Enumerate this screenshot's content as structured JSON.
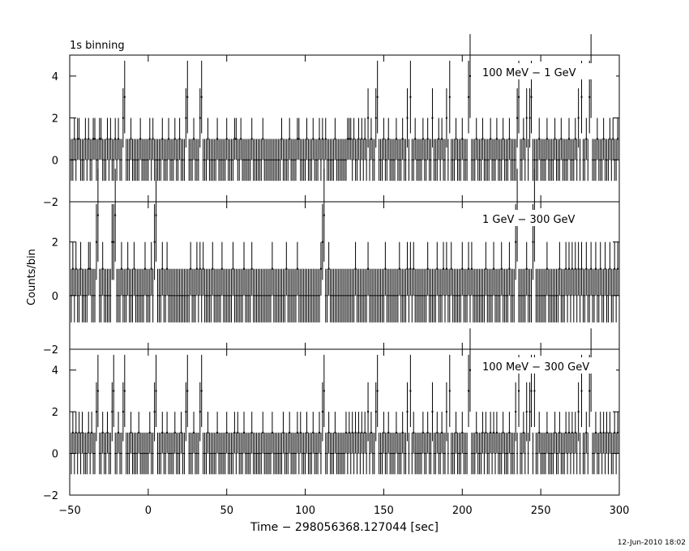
{
  "figure": {
    "title": "1s binning",
    "ylabel": "Counts/bin",
    "xlabel": "Time − 298056368.127044 [sec]",
    "timestamp": "12-Jun-2010 18:02"
  },
  "chart_data": [
    {
      "type": "bar",
      "panel": "top",
      "label": "100 MeV − 1 GeV",
      "xlim": [
        -50,
        300
      ],
      "ylim": [
        -2,
        5
      ],
      "yticks": [
        -2,
        0,
        2,
        4
      ],
      "ytick_labels": [
        "−2",
        "0",
        "2",
        "4"
      ],
      "bin_width_sec": 1,
      "points": [
        {
          "x": -47,
          "y": 1
        },
        {
          "x": -45,
          "y": 1
        },
        {
          "x": -44,
          "y": 1
        },
        {
          "x": -40,
          "y": 1
        },
        {
          "x": -38,
          "y": 1
        },
        {
          "x": -35,
          "y": 1
        },
        {
          "x": -34,
          "y": 1
        },
        {
          "x": -31,
          "y": 1
        },
        {
          "x": -30,
          "y": 1
        },
        {
          "x": -26,
          "y": 1
        },
        {
          "x": -24,
          "y": 1
        },
        {
          "x": -21,
          "y": 1
        },
        {
          "x": -19,
          "y": 1
        },
        {
          "x": -16,
          "y": 2
        },
        {
          "x": -15,
          "y": 3
        },
        {
          "x": -11,
          "y": 1
        },
        {
          "x": -5,
          "y": 1
        },
        {
          "x": 1,
          "y": 1
        },
        {
          "x": 3,
          "y": 1
        },
        {
          "x": 9,
          "y": 1
        },
        {
          "x": 13,
          "y": 1
        },
        {
          "x": 17,
          "y": 1
        },
        {
          "x": 20,
          "y": 1
        },
        {
          "x": 24,
          "y": 2
        },
        {
          "x": 25,
          "y": 3
        },
        {
          "x": 29,
          "y": 1
        },
        {
          "x": 33,
          "y": 2
        },
        {
          "x": 34,
          "y": 3
        },
        {
          "x": 38,
          "y": 1
        },
        {
          "x": 44,
          "y": 1
        },
        {
          "x": 50,
          "y": 1
        },
        {
          "x": 55,
          "y": 1
        },
        {
          "x": 56,
          "y": 1
        },
        {
          "x": 59,
          "y": 1
        },
        {
          "x": 66,
          "y": 1
        },
        {
          "x": 73,
          "y": 1
        },
        {
          "x": 85,
          "y": 1
        },
        {
          "x": 90,
          "y": 1
        },
        {
          "x": 95,
          "y": 1
        },
        {
          "x": 96,
          "y": 1
        },
        {
          "x": 101,
          "y": 1
        },
        {
          "x": 105,
          "y": 1
        },
        {
          "x": 109,
          "y": 1
        },
        {
          "x": 111,
          "y": 1
        },
        {
          "x": 113,
          "y": 1
        },
        {
          "x": 119,
          "y": 1
        },
        {
          "x": 127,
          "y": 1
        },
        {
          "x": 128,
          "y": 1
        },
        {
          "x": 129,
          "y": 1
        },
        {
          "x": 131,
          "y": 1
        },
        {
          "x": 134,
          "y": 1
        },
        {
          "x": 136,
          "y": 1
        },
        {
          "x": 138,
          "y": 1
        },
        {
          "x": 140,
          "y": 2
        },
        {
          "x": 142,
          "y": 1
        },
        {
          "x": 145,
          "y": 2
        },
        {
          "x": 146,
          "y": 3
        },
        {
          "x": 150,
          "y": 1
        },
        {
          "x": 153,
          "y": 1
        },
        {
          "x": 158,
          "y": 1
        },
        {
          "x": 162,
          "y": 1
        },
        {
          "x": 165,
          "y": 2
        },
        {
          "x": 167,
          "y": 3
        },
        {
          "x": 170,
          "y": 1
        },
        {
          "x": 175,
          "y": 1
        },
        {
          "x": 178,
          "y": 1
        },
        {
          "x": 181,
          "y": 2
        },
        {
          "x": 185,
          "y": 1
        },
        {
          "x": 187,
          "y": 1
        },
        {
          "x": 190,
          "y": 2
        },
        {
          "x": 192,
          "y": 3
        },
        {
          "x": 196,
          "y": 1
        },
        {
          "x": 200,
          "y": 1
        },
        {
          "x": 204,
          "y": 3
        },
        {
          "x": 205,
          "y": 4
        },
        {
          "x": 209,
          "y": 1
        },
        {
          "x": 213,
          "y": 1
        },
        {
          "x": 218,
          "y": 1
        },
        {
          "x": 222,
          "y": 1
        },
        {
          "x": 226,
          "y": 1
        },
        {
          "x": 230,
          "y": 1
        },
        {
          "x": 235,
          "y": 2
        },
        {
          "x": 236,
          "y": 3
        },
        {
          "x": 239,
          "y": 1
        },
        {
          "x": 241,
          "y": 2
        },
        {
          "x": 243,
          "y": 2
        },
        {
          "x": 244,
          "y": 3
        },
        {
          "x": 249,
          "y": 1
        },
        {
          "x": 254,
          "y": 1
        },
        {
          "x": 259,
          "y": 1
        },
        {
          "x": 263,
          "y": 1
        },
        {
          "x": 268,
          "y": 1
        },
        {
          "x": 272,
          "y": 1
        },
        {
          "x": 274,
          "y": 2
        },
        {
          "x": 276,
          "y": 3
        },
        {
          "x": 279,
          "y": 1
        },
        {
          "x": 281,
          "y": 3
        },
        {
          "x": 282,
          "y": 4
        },
        {
          "x": 286,
          "y": 1
        },
        {
          "x": 290,
          "y": 1
        },
        {
          "x": 294,
          "y": 1
        },
        {
          "x": 296,
          "y": 1
        },
        {
          "x": 299,
          "y": 1
        }
      ]
    },
    {
      "type": "bar",
      "panel": "middle",
      "label": "1 GeV − 300 GeV",
      "xlim": [
        -50,
        300
      ],
      "ylim": [
        -2,
        3.5
      ],
      "yticks": [
        -2,
        0,
        2
      ],
      "ytick_labels": [
        "−2",
        "0",
        "2"
      ],
      "bin_width_sec": 1,
      "points": [
        {
          "x": -48,
          "y": 1
        },
        {
          "x": -46,
          "y": 1
        },
        {
          "x": -43,
          "y": 1
        },
        {
          "x": -38,
          "y": 1
        },
        {
          "x": -37,
          "y": 1
        },
        {
          "x": -33,
          "y": 2
        },
        {
          "x": -32,
          "y": 3
        },
        {
          "x": -29,
          "y": 1
        },
        {
          "x": -23,
          "y": 2
        },
        {
          "x": -22,
          "y": 2
        },
        {
          "x": -21,
          "y": 3
        },
        {
          "x": -17,
          "y": 1
        },
        {
          "x": -13,
          "y": 1
        },
        {
          "x": -9,
          "y": 1
        },
        {
          "x": -2,
          "y": 1
        },
        {
          "x": 2,
          "y": 1
        },
        {
          "x": 4,
          "y": 2
        },
        {
          "x": 5,
          "y": 3
        },
        {
          "x": 9,
          "y": 1
        },
        {
          "x": 12,
          "y": 1
        },
        {
          "x": 27,
          "y": 1
        },
        {
          "x": 31,
          "y": 1
        },
        {
          "x": 33,
          "y": 1
        },
        {
          "x": 35,
          "y": 1
        },
        {
          "x": 41,
          "y": 1
        },
        {
          "x": 47,
          "y": 1
        },
        {
          "x": 54,
          "y": 1
        },
        {
          "x": 61,
          "y": 1
        },
        {
          "x": 66,
          "y": 1
        },
        {
          "x": 79,
          "y": 1
        },
        {
          "x": 88,
          "y": 1
        },
        {
          "x": 95,
          "y": 1
        },
        {
          "x": 110,
          "y": 1
        },
        {
          "x": 111,
          "y": 2
        },
        {
          "x": 112,
          "y": 3
        },
        {
          "x": 115,
          "y": 1
        },
        {
          "x": 132,
          "y": 1
        },
        {
          "x": 140,
          "y": 1
        },
        {
          "x": 151,
          "y": 1
        },
        {
          "x": 160,
          "y": 1
        },
        {
          "x": 165,
          "y": 1
        },
        {
          "x": 167,
          "y": 1
        },
        {
          "x": 169,
          "y": 1
        },
        {
          "x": 178,
          "y": 1
        },
        {
          "x": 184,
          "y": 1
        },
        {
          "x": 188,
          "y": 1
        },
        {
          "x": 190,
          "y": 1
        },
        {
          "x": 193,
          "y": 1
        },
        {
          "x": 200,
          "y": 1
        },
        {
          "x": 204,
          "y": 1
        },
        {
          "x": 206,
          "y": 1
        },
        {
          "x": 215,
          "y": 1
        },
        {
          "x": 220,
          "y": 1
        },
        {
          "x": 225,
          "y": 1
        },
        {
          "x": 230,
          "y": 1
        },
        {
          "x": 234,
          "y": 2
        },
        {
          "x": 235,
          "y": 3
        },
        {
          "x": 241,
          "y": 1
        },
        {
          "x": 245,
          "y": 2
        },
        {
          "x": 246,
          "y": 3
        },
        {
          "x": 254,
          "y": 1
        },
        {
          "x": 262,
          "y": 1
        },
        {
          "x": 266,
          "y": 1
        },
        {
          "x": 268,
          "y": 1
        },
        {
          "x": 270,
          "y": 1
        },
        {
          "x": 272,
          "y": 1
        },
        {
          "x": 274,
          "y": 1
        },
        {
          "x": 276,
          "y": 1
        },
        {
          "x": 279,
          "y": 1
        },
        {
          "x": 282,
          "y": 1
        },
        {
          "x": 285,
          "y": 1
        },
        {
          "x": 288,
          "y": 1
        },
        {
          "x": 291,
          "y": 1
        },
        {
          "x": 294,
          "y": 1
        },
        {
          "x": 297,
          "y": 1
        },
        {
          "x": 299,
          "y": 1
        }
      ]
    },
    {
      "type": "bar",
      "panel": "bottom",
      "label": "100 MeV − 300 GeV",
      "xlim": [
        -50,
        300
      ],
      "ylim": [
        -2,
        5
      ],
      "yticks": [
        -2,
        0,
        2,
        4
      ],
      "ytick_labels": [
        "−2",
        "0",
        "2",
        "4"
      ],
      "xticks": [
        -50,
        0,
        50,
        100,
        150,
        200,
        250,
        300
      ],
      "xtick_labels": [
        "−50",
        "0",
        "50",
        "100",
        "150",
        "200",
        "250",
        "300"
      ],
      "bin_width_sec": 1,
      "points": [
        {
          "x": -48,
          "y": 1
        },
        {
          "x": -46,
          "y": 1
        },
        {
          "x": -44,
          "y": 1
        },
        {
          "x": -42,
          "y": 1
        },
        {
          "x": -38,
          "y": 1
        },
        {
          "x": -36,
          "y": 1
        },
        {
          "x": -33,
          "y": 2
        },
        {
          "x": -32,
          "y": 3
        },
        {
          "x": -29,
          "y": 1
        },
        {
          "x": -26,
          "y": 1
        },
        {
          "x": -23,
          "y": 2
        },
        {
          "x": -22,
          "y": 3
        },
        {
          "x": -19,
          "y": 1
        },
        {
          "x": -16,
          "y": 2
        },
        {
          "x": -15,
          "y": 3
        },
        {
          "x": -11,
          "y": 1
        },
        {
          "x": -6,
          "y": 1
        },
        {
          "x": 1,
          "y": 1
        },
        {
          "x": 4,
          "y": 2
        },
        {
          "x": 5,
          "y": 3
        },
        {
          "x": 9,
          "y": 1
        },
        {
          "x": 12,
          "y": 1
        },
        {
          "x": 17,
          "y": 1
        },
        {
          "x": 21,
          "y": 1
        },
        {
          "x": 24,
          "y": 2
        },
        {
          "x": 25,
          "y": 3
        },
        {
          "x": 29,
          "y": 1
        },
        {
          "x": 33,
          "y": 2
        },
        {
          "x": 34,
          "y": 3
        },
        {
          "x": 38,
          "y": 1
        },
        {
          "x": 44,
          "y": 1
        },
        {
          "x": 50,
          "y": 1
        },
        {
          "x": 55,
          "y": 1
        },
        {
          "x": 57,
          "y": 1
        },
        {
          "x": 61,
          "y": 1
        },
        {
          "x": 66,
          "y": 1
        },
        {
          "x": 73,
          "y": 1
        },
        {
          "x": 79,
          "y": 1
        },
        {
          "x": 86,
          "y": 1
        },
        {
          "x": 90,
          "y": 1
        },
        {
          "x": 95,
          "y": 1
        },
        {
          "x": 97,
          "y": 1
        },
        {
          "x": 101,
          "y": 1
        },
        {
          "x": 105,
          "y": 1
        },
        {
          "x": 109,
          "y": 1
        },
        {
          "x": 111,
          "y": 2
        },
        {
          "x": 112,
          "y": 3
        },
        {
          "x": 115,
          "y": 1
        },
        {
          "x": 119,
          "y": 1
        },
        {
          "x": 126,
          "y": 1
        },
        {
          "x": 128,
          "y": 1
        },
        {
          "x": 130,
          "y": 1
        },
        {
          "x": 132,
          "y": 1
        },
        {
          "x": 134,
          "y": 1
        },
        {
          "x": 136,
          "y": 1
        },
        {
          "x": 138,
          "y": 1
        },
        {
          "x": 140,
          "y": 2
        },
        {
          "x": 142,
          "y": 1
        },
        {
          "x": 145,
          "y": 2
        },
        {
          "x": 146,
          "y": 3
        },
        {
          "x": 150,
          "y": 1
        },
        {
          "x": 153,
          "y": 1
        },
        {
          "x": 158,
          "y": 1
        },
        {
          "x": 162,
          "y": 1
        },
        {
          "x": 165,
          "y": 2
        },
        {
          "x": 167,
          "y": 3
        },
        {
          "x": 169,
          "y": 1
        },
        {
          "x": 175,
          "y": 1
        },
        {
          "x": 178,
          "y": 1
        },
        {
          "x": 181,
          "y": 2
        },
        {
          "x": 184,
          "y": 1
        },
        {
          "x": 187,
          "y": 1
        },
        {
          "x": 190,
          "y": 2
        },
        {
          "x": 192,
          "y": 3
        },
        {
          "x": 196,
          "y": 1
        },
        {
          "x": 200,
          "y": 1
        },
        {
          "x": 204,
          "y": 3
        },
        {
          "x": 205,
          "y": 4
        },
        {
          "x": 209,
          "y": 1
        },
        {
          "x": 213,
          "y": 1
        },
        {
          "x": 215,
          "y": 1
        },
        {
          "x": 218,
          "y": 1
        },
        {
          "x": 220,
          "y": 1
        },
        {
          "x": 222,
          "y": 1
        },
        {
          "x": 226,
          "y": 1
        },
        {
          "x": 230,
          "y": 1
        },
        {
          "x": 234,
          "y": 2
        },
        {
          "x": 236,
          "y": 3
        },
        {
          "x": 239,
          "y": 1
        },
        {
          "x": 241,
          "y": 2
        },
        {
          "x": 243,
          "y": 2
        },
        {
          "x": 244,
          "y": 3
        },
        {
          "x": 246,
          "y": 3
        },
        {
          "x": 249,
          "y": 1
        },
        {
          "x": 254,
          "y": 1
        },
        {
          "x": 259,
          "y": 1
        },
        {
          "x": 262,
          "y": 1
        },
        {
          "x": 266,
          "y": 1
        },
        {
          "x": 268,
          "y": 1
        },
        {
          "x": 270,
          "y": 1
        },
        {
          "x": 272,
          "y": 1
        },
        {
          "x": 274,
          "y": 2
        },
        {
          "x": 276,
          "y": 3
        },
        {
          "x": 279,
          "y": 1
        },
        {
          "x": 281,
          "y": 3
        },
        {
          "x": 282,
          "y": 4
        },
        {
          "x": 285,
          "y": 1
        },
        {
          "x": 288,
          "y": 1
        },
        {
          "x": 290,
          "y": 1
        },
        {
          "x": 292,
          "y": 1
        },
        {
          "x": 294,
          "y": 1
        },
        {
          "x": 297,
          "y": 1
        },
        {
          "x": 299,
          "y": 1
        }
      ]
    }
  ]
}
